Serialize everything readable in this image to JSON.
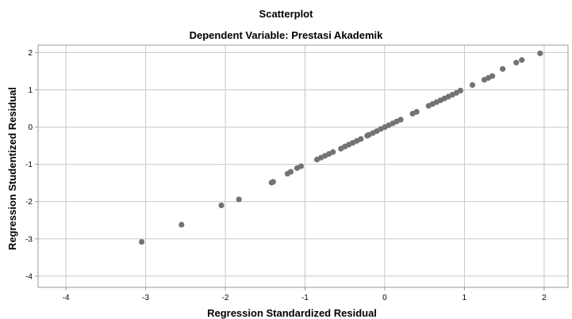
{
  "chart_data": {
    "type": "scatter",
    "title": "Scatterplot",
    "subtitle": "Dependent Variable: Prestasi Akademik",
    "xlabel": "Regression Standardized Residual",
    "ylabel": "Regression Studentized Residual",
    "xlim": [
      -4.35,
      2.3
    ],
    "ylim": [
      -4.3,
      2.2
    ],
    "xticks": [
      -4,
      -3,
      -2,
      -1,
      0,
      1,
      2
    ],
    "yticks": [
      2,
      1,
      0,
      -1,
      -2,
      -3,
      -4
    ],
    "xtick_labels": [
      "-4",
      "-3",
      "-2",
      "-1",
      "0",
      "1",
      "2"
    ],
    "ytick_labels": [
      "2",
      "1",
      "0",
      "-1",
      "-2",
      "-3",
      "-4"
    ],
    "grid": true,
    "point_color": "#737373",
    "grid_color": "#c8c8c8",
    "x": [
      -3.05,
      -2.55,
      -2.05,
      -1.83,
      -1.42,
      -1.4,
      -1.22,
      -1.18,
      -1.1,
      -1.05,
      -0.85,
      -0.8,
      -0.75,
      -0.7,
      -0.65,
      -0.55,
      -0.5,
      -0.45,
      -0.4,
      -0.35,
      -0.3,
      -0.22,
      -0.2,
      -0.15,
      -0.1,
      -0.05,
      0.0,
      0.05,
      0.1,
      0.15,
      0.2,
      0.35,
      0.4,
      0.55,
      0.6,
      0.65,
      0.7,
      0.75,
      0.8,
      0.85,
      0.9,
      0.95,
      1.1,
      1.25,
      1.3,
      1.35,
      1.48,
      1.65,
      1.72,
      1.95
    ],
    "y": [
      -3.08,
      -2.62,
      -2.1,
      -1.94,
      -1.49,
      -1.47,
      -1.25,
      -1.2,
      -1.1,
      -1.05,
      -0.87,
      -0.82,
      -0.77,
      -0.72,
      -0.67,
      -0.58,
      -0.52,
      -0.47,
      -0.42,
      -0.37,
      -0.32,
      -0.23,
      -0.21,
      -0.16,
      -0.11,
      -0.05,
      0.0,
      0.05,
      0.1,
      0.15,
      0.2,
      0.36,
      0.41,
      0.57,
      0.62,
      0.67,
      0.72,
      0.77,
      0.82,
      0.87,
      0.92,
      0.98,
      1.13,
      1.27,
      1.32,
      1.37,
      1.56,
      1.73,
      1.8,
      1.98
    ]
  }
}
